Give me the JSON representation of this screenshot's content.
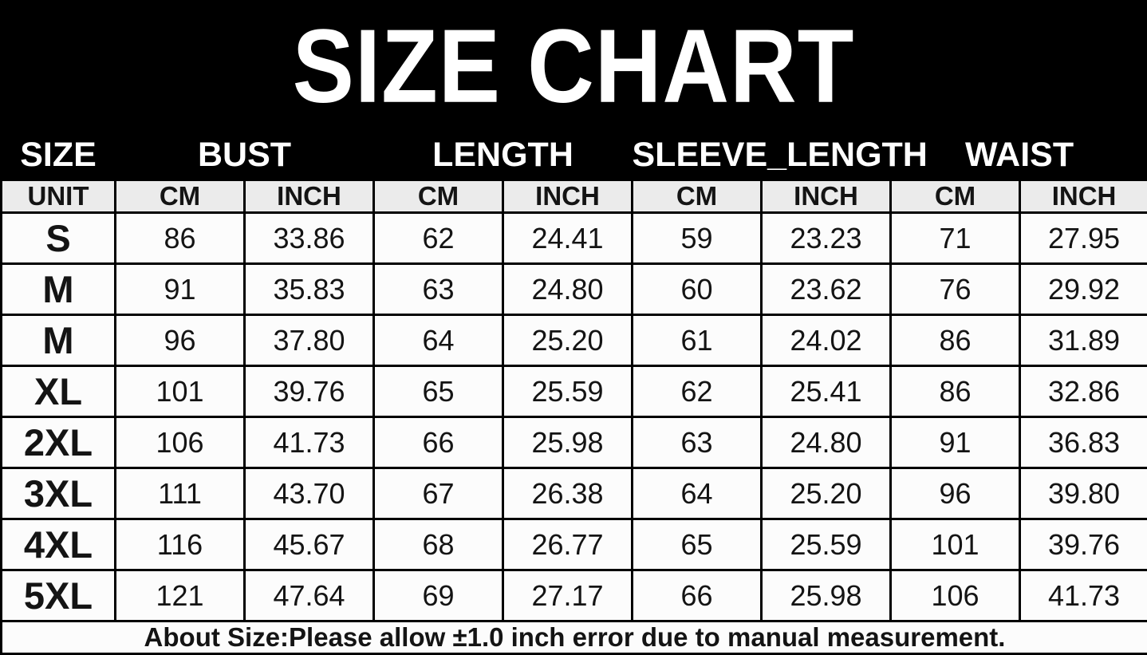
{
  "title": "SIZE CHART",
  "colors": {
    "background": "#000000",
    "title_text": "#ffffff",
    "header_text": "#ffffff",
    "unit_row_background": "#ebebeb",
    "cell_background": "#fcfcfc",
    "border": "#000000",
    "body_text": "#141414"
  },
  "table": {
    "groups": [
      {
        "label": "SIZE",
        "span": 1
      },
      {
        "label": "BUST",
        "span": 2
      },
      {
        "label": "LENGTH",
        "span": 2
      },
      {
        "label": "SLEEVE_LENGTH",
        "span": 2
      },
      {
        "label": "WAIST",
        "span": 2
      }
    ],
    "unit_row": [
      "UNIT",
      "CM",
      "INCH",
      "CM",
      "INCH",
      "CM",
      "INCH",
      "CM",
      "INCH"
    ],
    "rows": [
      {
        "size": "S",
        "values": [
          "86",
          "33.86",
          "62",
          "24.41",
          "59",
          "23.23",
          "71",
          "27.95"
        ]
      },
      {
        "size": "M",
        "values": [
          "91",
          "35.83",
          "63",
          "24.80",
          "60",
          "23.62",
          "76",
          "29.92"
        ]
      },
      {
        "size": "M",
        "values": [
          "96",
          "37.80",
          "64",
          "25.20",
          "61",
          "24.02",
          "86",
          "31.89"
        ]
      },
      {
        "size": "XL",
        "values": [
          "101",
          "39.76",
          "65",
          "25.59",
          "62",
          "25.41",
          "86",
          "32.86"
        ]
      },
      {
        "size": "2XL",
        "values": [
          "106",
          "41.73",
          "66",
          "25.98",
          "63",
          "24.80",
          "91",
          "36.83"
        ]
      },
      {
        "size": "3XL",
        "values": [
          "111",
          "43.70",
          "67",
          "26.38",
          "64",
          "25.20",
          "96",
          "39.80"
        ]
      },
      {
        "size": "4XL",
        "values": [
          "116",
          "45.67",
          "68",
          "26.77",
          "65",
          "25.59",
          "101",
          "39.76"
        ]
      },
      {
        "size": "5XL",
        "values": [
          "121",
          "47.64",
          "69",
          "27.17",
          "66",
          "25.98",
          "106",
          "41.73"
        ]
      }
    ],
    "footer": "About Size:Please allow ±1.0 inch error due to manual measurement."
  },
  "chart_data": {
    "type": "table",
    "title": "SIZE CHART",
    "columns": [
      "SIZE",
      "BUST CM",
      "BUST INCH",
      "LENGTH CM",
      "LENGTH INCH",
      "SLEEVE_LENGTH CM",
      "SLEEVE_LENGTH INCH",
      "WAIST CM",
      "WAIST INCH"
    ],
    "rows": [
      [
        "S",
        86,
        33.86,
        62,
        24.41,
        59,
        23.23,
        71,
        27.95
      ],
      [
        "M",
        91,
        35.83,
        63,
        24.8,
        60,
        23.62,
        76,
        29.92
      ],
      [
        "M",
        96,
        37.8,
        64,
        25.2,
        61,
        24.02,
        86,
        31.89
      ],
      [
        "XL",
        101,
        39.76,
        65,
        25.59,
        62,
        25.41,
        86,
        32.86
      ],
      [
        "2XL",
        106,
        41.73,
        66,
        25.98,
        63,
        24.8,
        91,
        36.83
      ],
      [
        "3XL",
        111,
        43.7,
        67,
        26.38,
        64,
        25.2,
        96,
        39.8
      ],
      [
        "4XL",
        116,
        45.67,
        68,
        26.77,
        65,
        25.59,
        101,
        39.76
      ],
      [
        "5XL",
        121,
        47.64,
        69,
        27.17,
        66,
        25.98,
        106,
        41.73
      ]
    ],
    "note": "About Size:Please allow ±1.0 inch error due to manual measurement.",
    "layout": "grouped header row (CM/INCH sub-columns) on black background"
  }
}
